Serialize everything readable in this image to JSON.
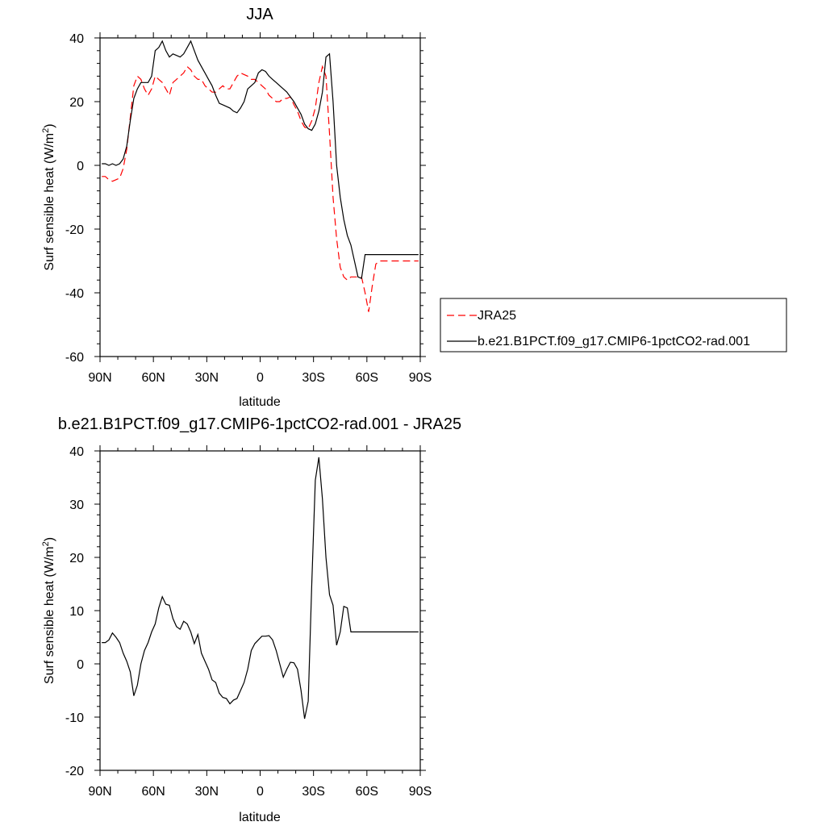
{
  "chart_data": [
    {
      "type": "line",
      "title": "JJA",
      "xlabel": "latitude",
      "ylabel": "Surf sensible heat (W/m",
      "ylabel_sup": "2",
      "ylabel_tail": ")",
      "xlim": [
        90,
        -90
      ],
      "ylim": [
        -60,
        40
      ],
      "xticks": [
        90,
        60,
        30,
        0,
        -30,
        -60,
        -90
      ],
      "xticklabels": [
        "90N",
        "60N",
        "30N",
        "0",
        "30S",
        "60S",
        "90S"
      ],
      "yticks": [
        -60,
        -40,
        -20,
        0,
        20,
        40
      ],
      "yticklabels": [
        "-60",
        "-40",
        "-20",
        "0",
        "20",
        "40"
      ],
      "legend_position": "right",
      "series": [
        {
          "name": "JRA25",
          "color": "#ff0000",
          "dash": "dashed",
          "x": [
            89,
            87,
            85,
            83,
            81,
            79,
            77,
            75,
            73,
            71,
            69,
            67,
            65,
            63,
            61,
            59,
            57,
            55,
            53,
            51,
            49,
            47,
            45,
            43,
            41,
            39,
            37,
            35,
            33,
            31,
            29,
            27,
            25,
            23,
            21,
            19,
            17,
            15,
            13,
            11,
            9,
            7,
            5,
            3,
            1,
            -1,
            -3,
            -5,
            -7,
            -9,
            -11,
            -13,
            -15,
            -17,
            -19,
            -21,
            -23,
            -25,
            -27,
            -29,
            -31,
            -33,
            -35,
            -37,
            -39,
            -41,
            -43,
            -45,
            -47,
            -49,
            -51,
            -53,
            -55,
            -57,
            -59,
            -61,
            -63,
            -65,
            -67,
            -69,
            -71,
            -73,
            -75,
            -77,
            -79,
            -81,
            -83,
            -85,
            -87,
            -89
          ],
          "y": [
            -3.5,
            -3.5,
            -4.5,
            -5,
            -4.5,
            -4,
            -1,
            5,
            15,
            25,
            28,
            27,
            24,
            22,
            24,
            28,
            27,
            26,
            24,
            22,
            26,
            27,
            28,
            29,
            31,
            30,
            28,
            27,
            27,
            25,
            24,
            23,
            23,
            24,
            25,
            24,
            24,
            26,
            28,
            29,
            28.5,
            28,
            27,
            27,
            26,
            25,
            24,
            22,
            21,
            20,
            20,
            21,
            21,
            21.5,
            19,
            17,
            14,
            12,
            11.5,
            14,
            18,
            26,
            31,
            28,
            10,
            -10,
            -23,
            -32,
            -35,
            -36,
            -35,
            -35,
            -35,
            -35,
            -40,
            -46,
            -38,
            -31,
            -30,
            -30,
            -30,
            -30,
            -30,
            -30,
            -30,
            -30,
            -30,
            -30,
            -30,
            -30
          ]
        },
        {
          "name": "b.e21.B1PCT.f09_g17.CMIP6-1pctCO2-rad.001",
          "color": "#000000",
          "dash": "solid",
          "x": [
            89,
            87,
            85,
            83,
            81,
            79,
            77,
            75,
            73,
            71,
            69,
            67,
            65,
            63,
            61,
            59,
            57,
            55,
            53,
            51,
            49,
            47,
            45,
            43,
            41,
            39,
            37,
            35,
            33,
            31,
            29,
            27,
            25,
            23,
            21,
            19,
            17,
            15,
            13,
            11,
            9,
            7,
            5,
            3,
            1,
            -1,
            -3,
            -5,
            -7,
            -9,
            -11,
            -13,
            -15,
            -17,
            -19,
            -21,
            -23,
            -25,
            -27,
            -29,
            -31,
            -33,
            -35,
            -37,
            -39,
            -41,
            -43,
            -45,
            -47,
            -49,
            -51,
            -53,
            -55,
            -57,
            -59,
            -61,
            -63,
            -65,
            -67,
            -69,
            -71,
            -73,
            -75,
            -77,
            -79,
            -81,
            -83,
            -85,
            -87,
            -89
          ],
          "y": [
            0.5,
            0.5,
            0,
            0.5,
            0,
            0.5,
            2,
            6,
            14,
            21,
            24,
            26,
            26,
            26,
            28,
            36,
            37,
            39,
            36,
            34,
            35,
            34.5,
            34,
            35,
            37,
            39,
            36,
            33,
            31,
            29,
            27,
            25,
            22,
            19.5,
            19,
            18.5,
            18,
            17,
            16.5,
            18,
            20,
            24,
            25,
            26,
            29,
            30,
            29.5,
            28,
            27,
            26,
            25,
            24,
            23,
            21.5,
            20,
            18,
            16,
            13,
            11.5,
            11,
            13,
            17,
            23,
            34,
            35,
            20,
            0,
            -10,
            -17,
            -22,
            -25,
            -30,
            -35,
            -35.5,
            -28,
            -28,
            -28,
            -28,
            -28,
            -28,
            -28,
            -28,
            -28,
            -28,
            -28,
            -28,
            -28,
            -28,
            -28,
            -28
          ]
        }
      ]
    },
    {
      "type": "line",
      "title": "b.e21.B1PCT.f09_g17.CMIP6-1pctCO2-rad.001 - JRA25",
      "xlabel": "latitude",
      "ylabel": "Surf sensible heat (W/m",
      "ylabel_sup": "2",
      "ylabel_tail": ")",
      "xlim": [
        90,
        -90
      ],
      "ylim": [
        -20,
        40
      ],
      "xticks": [
        90,
        60,
        30,
        0,
        -30,
        -60,
        -90
      ],
      "xticklabels": [
        "90N",
        "60N",
        "30N",
        "0",
        "30S",
        "60S",
        "90S"
      ],
      "yticks": [
        -20,
        -10,
        0,
        10,
        20,
        30,
        40
      ],
      "yticklabels": [
        "-20",
        "-10",
        "0",
        "10",
        "20",
        "30",
        "40"
      ],
      "series": [
        {
          "color": "#000000",
          "dash": "solid",
          "x": [
            89,
            87,
            85,
            83,
            81,
            79,
            77,
            75,
            73,
            71,
            69,
            67,
            65,
            63,
            61,
            59,
            57,
            55,
            53,
            51,
            49,
            47,
            45,
            43,
            41,
            39,
            37,
            35,
            33,
            31,
            29,
            27,
            25,
            23,
            21,
            19,
            17,
            15,
            13,
            11,
            9,
            7,
            5,
            3,
            1,
            -1,
            -3,
            -5,
            -7,
            -9,
            -11,
            -13,
            -15,
            -17,
            -19,
            -21,
            -23,
            -25,
            -27,
            -29,
            -31,
            -33,
            -35,
            -37,
            -39,
            -41,
            -43,
            -45,
            -47,
            -49,
            -51,
            -53,
            -55,
            -57,
            -59,
            -61,
            -63,
            -65,
            -67,
            -69,
            -71,
            -73,
            -75,
            -77,
            -79,
            -81,
            -83,
            -85,
            -87,
            -89
          ],
          "y": [
            4,
            4,
            4.5,
            5.8,
            5,
            4,
            2,
            0.5,
            -1.5,
            -6,
            -4,
            0,
            2.5,
            4,
            6,
            7.5,
            10.5,
            12.6,
            11.2,
            11,
            8.5,
            7,
            6.5,
            8,
            7.5,
            6,
            3.8,
            5.5,
            2,
            0.5,
            -1,
            -3,
            -3.5,
            -5.5,
            -6.3,
            -6.5,
            -7.5,
            -6.8,
            -6.5,
            -5,
            -3.5,
            -1,
            2.5,
            3.8,
            4.5,
            5.2,
            5.2,
            5.3,
            4.5,
            2.5,
            0,
            -2.5,
            -1,
            0.3,
            0.2,
            -1,
            -5,
            -10.3,
            -7,
            15,
            34.5,
            38.8,
            31,
            20,
            13,
            11,
            3.5,
            6,
            10.8,
            10.5,
            6,
            6,
            6,
            6,
            6,
            6,
            6,
            6,
            6,
            6,
            6,
            6,
            6,
            6,
            6,
            6,
            6,
            6,
            6,
            6
          ]
        }
      ]
    }
  ]
}
